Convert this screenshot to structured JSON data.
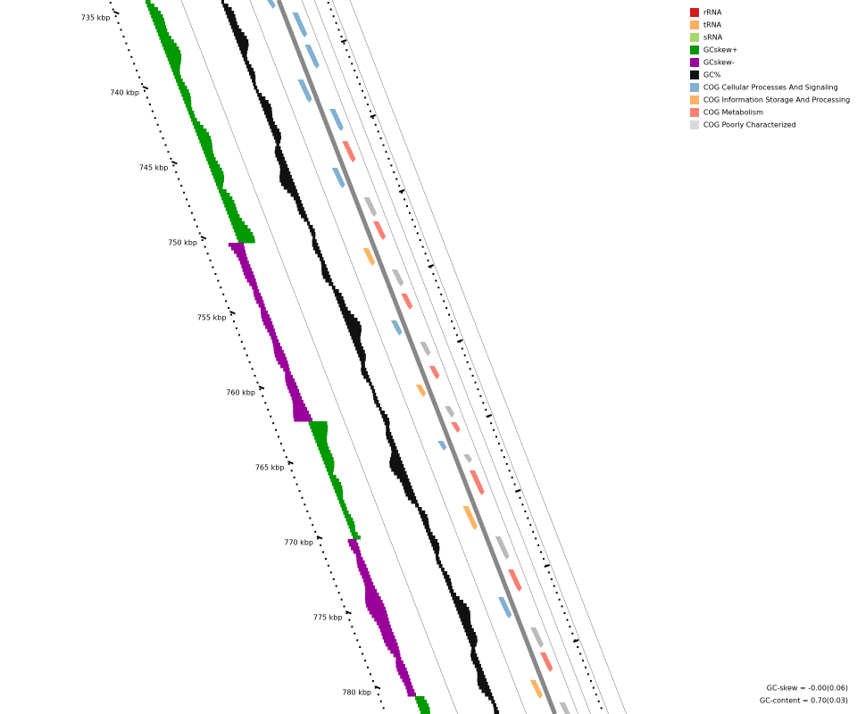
{
  "scale_labels": [
    "735 kbp",
    "740 kbp",
    "745 kbp",
    "750 kbp",
    "755 kbp",
    "760 kbp",
    "765 kbp",
    "770 kbp",
    "775 kbp",
    "780 kbp"
  ],
  "legend": [
    {
      "name": "rRNA",
      "color": "#d7191c"
    },
    {
      "name": "tRNA",
      "color": "#fdae61"
    },
    {
      "name": "sRNA",
      "color": "#a6d96a"
    },
    {
      "name": "GCskew+",
      "color": "#009900"
    },
    {
      "name": "GCskew-",
      "color": "#990099"
    },
    {
      "name": "GC%",
      "color": "#111111"
    },
    {
      "name": "COG Cellular Processes And Signaling",
      "color": "#80b1d3"
    },
    {
      "name": "COG Information Storage And Processing",
      "color": "#fdb462"
    },
    {
      "name": "COG Metabolism",
      "color": "#fb8072"
    },
    {
      "name": "COG Poorly Characterized",
      "color": "#d9d9d9"
    }
  ],
  "footer": [
    "GC-skew = -0.00(0.06)",
    "GC-content = 0.70(0.03)"
  ]
}
